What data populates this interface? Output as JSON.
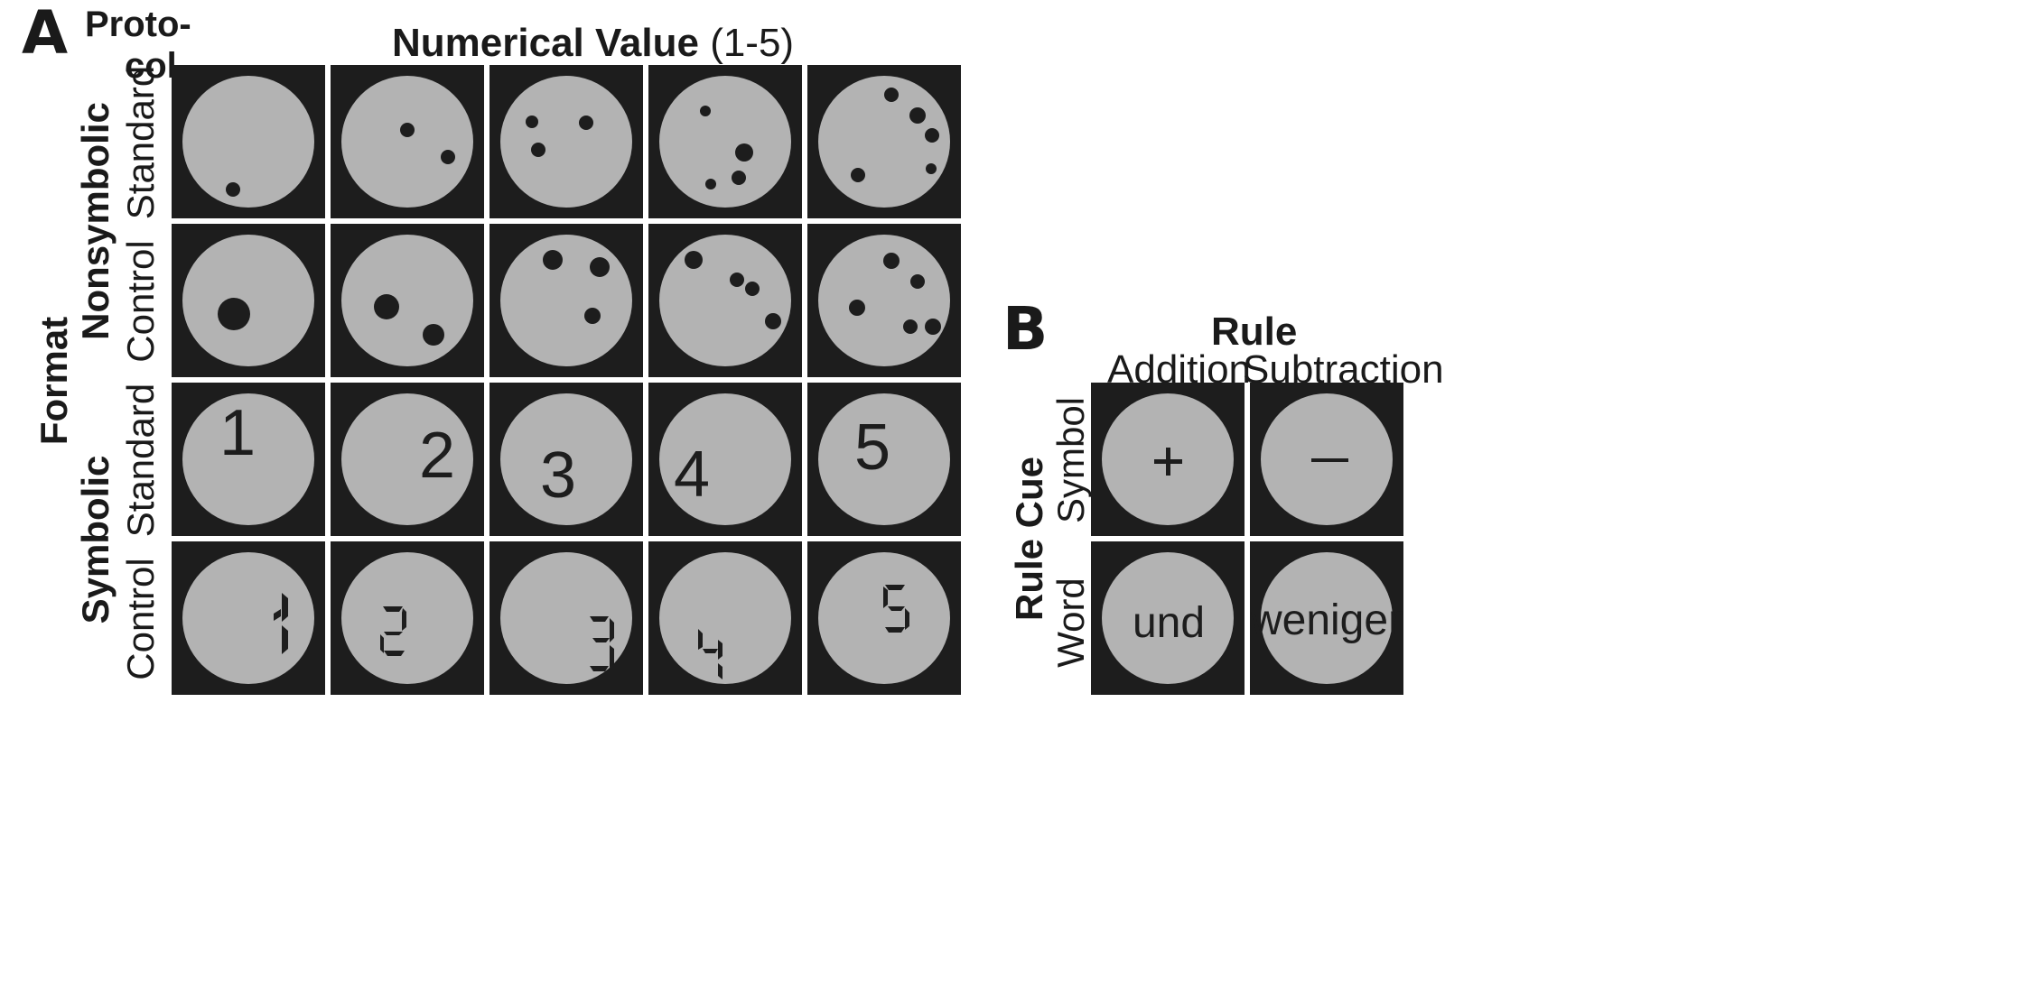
{
  "panel_a": {
    "letter": "A",
    "protocol_line1": "Proto-",
    "protocol_line2": "col",
    "title_bold": "Numerical Value",
    "title_rest": "(1-5)",
    "format_label": "Format",
    "nonsymbolic_label": "Nonsymbolic",
    "symbolic_label": "Symbolic",
    "rows": [
      {
        "protocol": "Standard"
      },
      {
        "protocol": "Control"
      },
      {
        "protocol": "Standard"
      },
      {
        "protocol": "Control"
      }
    ],
    "symbolic_standard_digits": [
      "1",
      "2",
      "3",
      "4",
      "5"
    ],
    "symbolic_control_digits": [
      "1",
      "2",
      "3",
      "4",
      "5"
    ]
  },
  "panel_b": {
    "letter": "B",
    "rule_label": "Rule",
    "columns": [
      "Addition",
      "Subtraction"
    ],
    "rule_cue_label": "Rule Cue",
    "rows": [
      "Symbol",
      "Word"
    ],
    "symbol_cues": [
      "+",
      "—"
    ],
    "word_cues": [
      "und",
      "weniger"
    ]
  },
  "colors": {
    "cell_background": "#1d1d1d",
    "disc": "#b3b3b3",
    "dot": "#1d1d1d"
  }
}
